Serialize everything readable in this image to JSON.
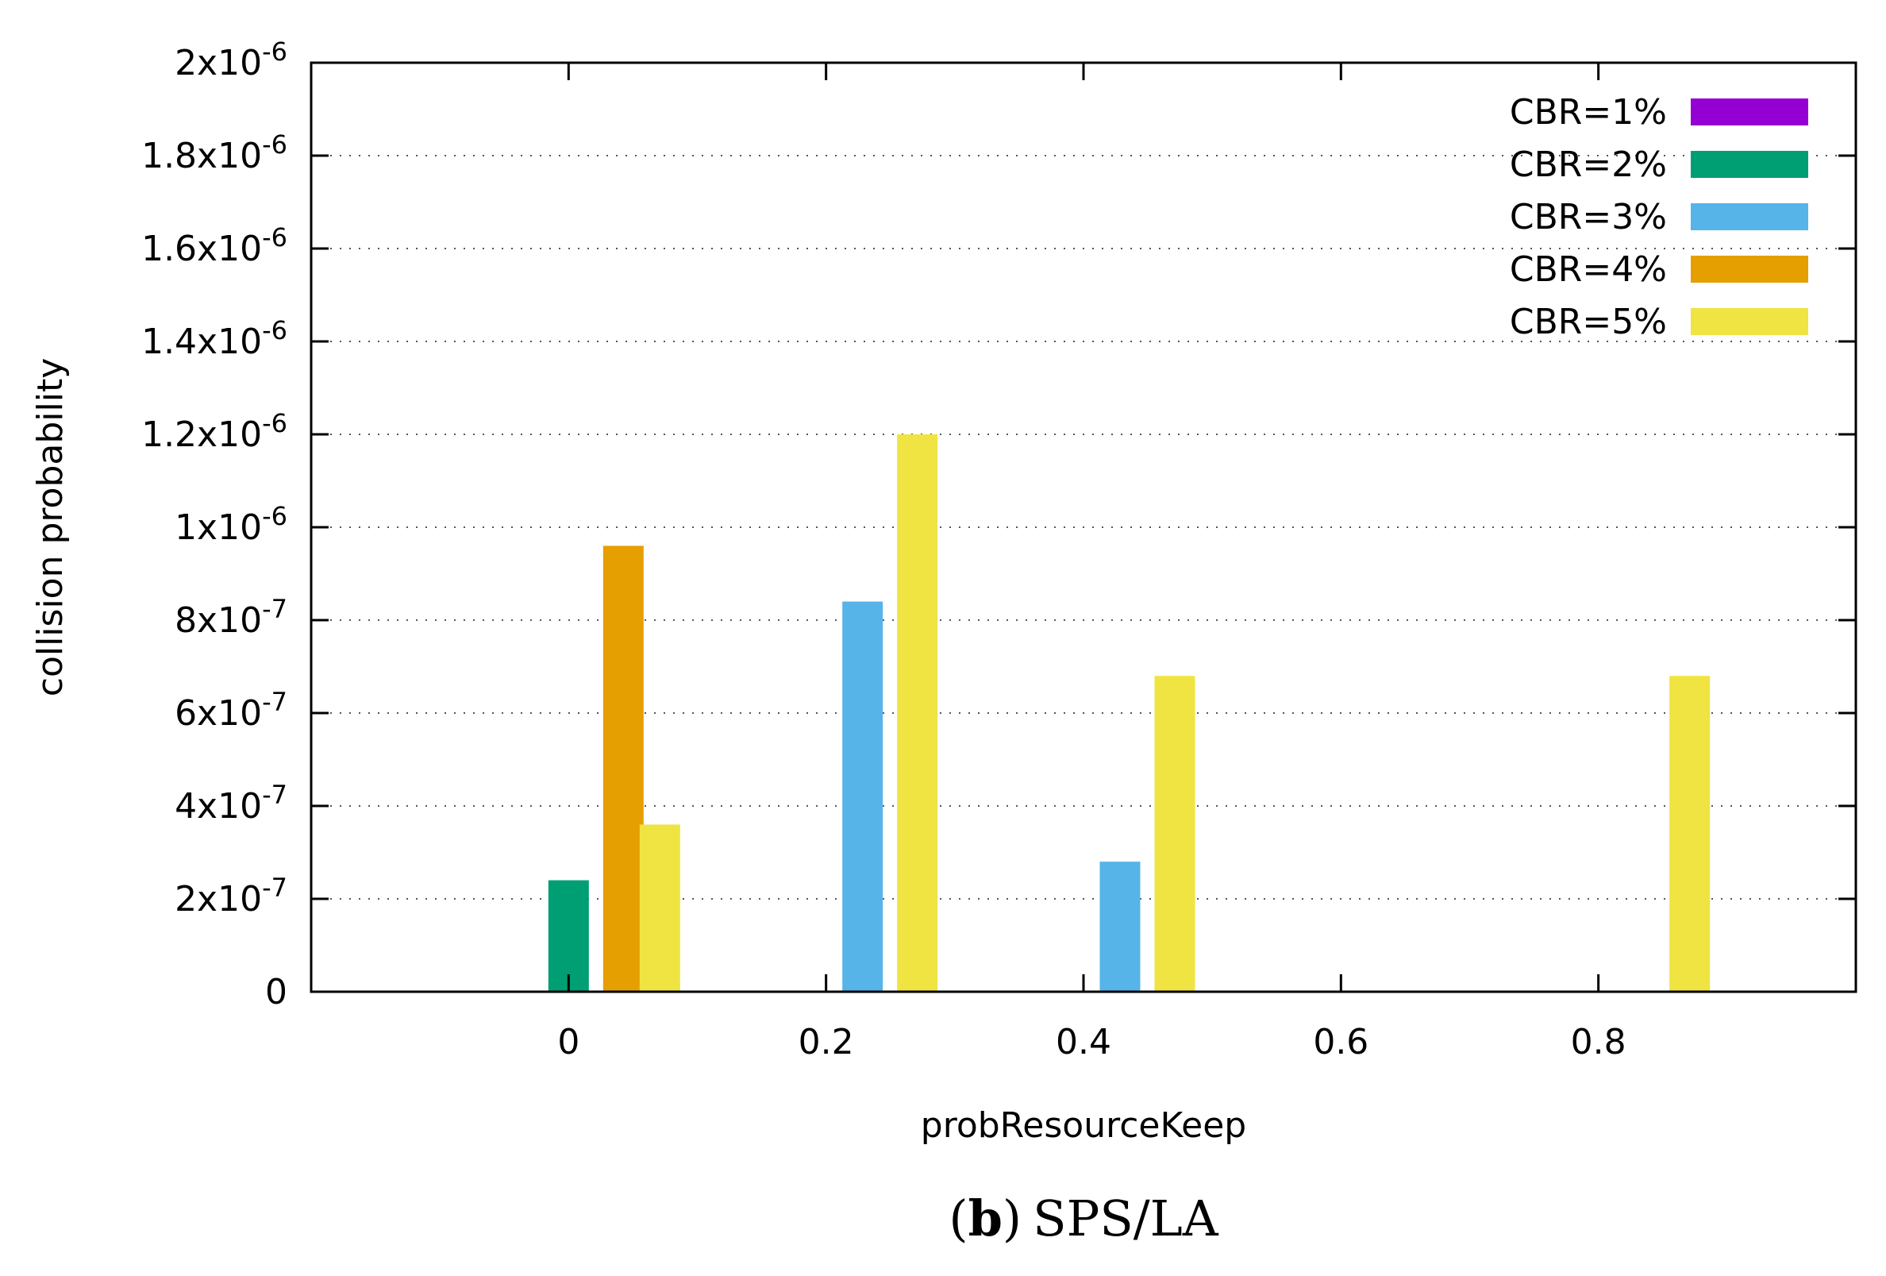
{
  "chart_data": {
    "type": "bar",
    "xlabel": "probResourceKeep",
    "ylabel": "collision probability",
    "ylim": [
      0,
      2e-06
    ],
    "grid": true,
    "legend_position": "top-right",
    "y_ticks": [
      {
        "value": 0,
        "mantissa": "0",
        "exponent": ""
      },
      {
        "value": 2e-07,
        "mantissa": "2x10",
        "exponent": "-7"
      },
      {
        "value": 4e-07,
        "mantissa": "4x10",
        "exponent": "-7"
      },
      {
        "value": 6e-07,
        "mantissa": "6x10",
        "exponent": "-7"
      },
      {
        "value": 8e-07,
        "mantissa": "8x10",
        "exponent": "-7"
      },
      {
        "value": 1e-06,
        "mantissa": "1x10",
        "exponent": "-6"
      },
      {
        "value": 1.2e-06,
        "mantissa": "1.2x10",
        "exponent": "-6"
      },
      {
        "value": 1.4e-06,
        "mantissa": "1.4x10",
        "exponent": "-6"
      },
      {
        "value": 1.6e-06,
        "mantissa": "1.6x10",
        "exponent": "-6"
      },
      {
        "value": 1.8e-06,
        "mantissa": "1.8x10",
        "exponent": "-6"
      },
      {
        "value": 2e-06,
        "mantissa": "2x10",
        "exponent": "-6"
      }
    ],
    "categories": [
      "0",
      "0.2",
      "0.4",
      "0.6",
      "0.8"
    ],
    "series": [
      {
        "name": "CBR=1%",
        "color": "#9400d3",
        "values": [
          0,
          0,
          0,
          0,
          0
        ]
      },
      {
        "name": "CBR=2%",
        "color": "#009e73",
        "values": [
          2.4e-07,
          0,
          0,
          0,
          0
        ]
      },
      {
        "name": "CBR=3%",
        "color": "#56b4e9",
        "values": [
          0,
          8.4e-07,
          2.8e-07,
          0,
          0
        ]
      },
      {
        "name": "CBR=4%",
        "color": "#e69f00",
        "values": [
          9.6e-07,
          0,
          0,
          0,
          0
        ]
      },
      {
        "name": "CBR=5%",
        "color": "#f0e442",
        "values": [
          3.6e-07,
          1.2e-06,
          6.8e-07,
          0,
          6.8e-07
        ]
      }
    ]
  },
  "caption": {
    "label": "(b)",
    "label_letter": "b",
    "text": "SPS/LA"
  }
}
